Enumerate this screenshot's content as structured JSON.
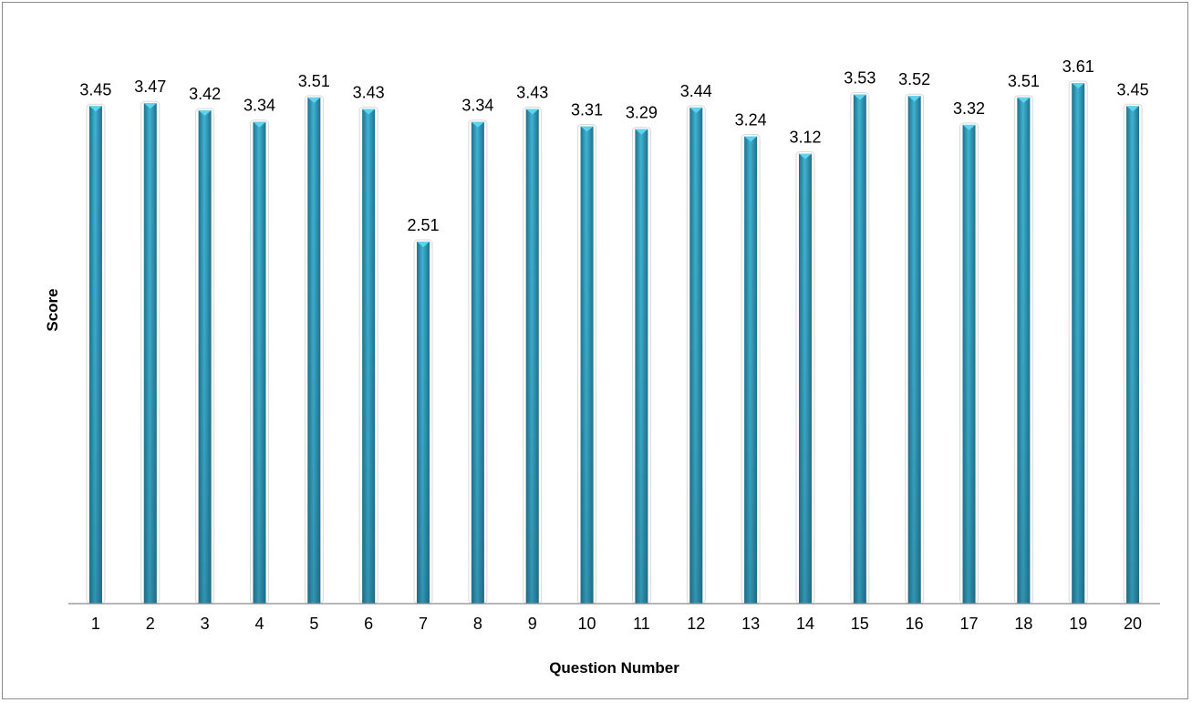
{
  "chart_data": {
    "type": "bar",
    "title": "",
    "xlabel": "Question Number",
    "ylabel": "Score",
    "categories": [
      "1",
      "2",
      "3",
      "4",
      "5",
      "6",
      "7",
      "8",
      "9",
      "10",
      "11",
      "12",
      "13",
      "14",
      "15",
      "16",
      "17",
      "18",
      "19",
      "20"
    ],
    "values": [
      3.45,
      3.47,
      3.42,
      3.34,
      3.51,
      3.43,
      2.51,
      3.34,
      3.43,
      3.31,
      3.29,
      3.44,
      3.24,
      3.12,
      3.53,
      3.52,
      3.32,
      3.51,
      3.61,
      3.45
    ],
    "value_labels": [
      "3.45",
      "3.47",
      "3.42",
      "3.34",
      "3.51",
      "3.43",
      "2.51",
      "3.34",
      "3.43",
      "3.31",
      "3.29",
      "3.44",
      "3.24",
      "3.12",
      "3.53",
      "3.52",
      "3.32",
      "3.51",
      "3.61",
      "3.45"
    ],
    "ylim": [
      0,
      3.61
    ],
    "grid": false,
    "legend": "none",
    "colors": {
      "bar": "#2b8fae",
      "bar_light": "#43bfdc",
      "bar_dark": "#1f6f8a",
      "axis": "#8c8c8c"
    }
  }
}
